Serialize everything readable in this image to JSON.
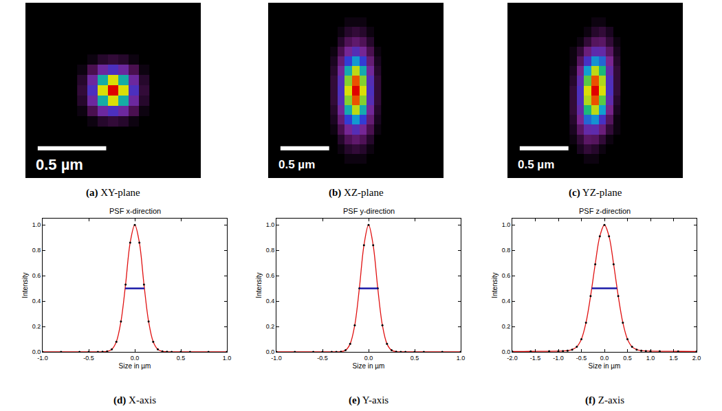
{
  "chart_data": [
    {
      "type": "heatmap",
      "caption": {
        "letter": "(a)",
        "text": "XY-plane"
      },
      "x": [
        -0.225,
        -0.15,
        -0.075,
        0,
        0.075,
        0.15,
        0.225
      ],
      "y": [
        -0.225,
        -0.15,
        -0.075,
        0,
        0.075,
        0.15,
        0.225
      ],
      "z": [
        [
          0,
          0.01,
          0.03,
          0.04,
          0.03,
          0.01,
          0
        ],
        [
          0.01,
          0.06,
          0.18,
          0.25,
          0.18,
          0.06,
          0.01
        ],
        [
          0.03,
          0.18,
          0.5,
          0.71,
          0.5,
          0.18,
          0.03
        ],
        [
          0.04,
          0.25,
          0.71,
          1,
          0.71,
          0.25,
          0.04
        ],
        [
          0.03,
          0.18,
          0.5,
          0.71,
          0.5,
          0.18,
          0.03
        ],
        [
          0.01,
          0.06,
          0.18,
          0.25,
          0.18,
          0.06,
          0.01
        ],
        [
          0,
          0.01,
          0.03,
          0.04,
          0.03,
          0.01,
          0
        ]
      ],
      "zlim": [
        0,
        1
      ],
      "xlim": [
        -0.64,
        0.64
      ],
      "ylim": [
        -0.64,
        0.64
      ],
      "scale_bar": {
        "length": 0.5,
        "label": "0.5 µm"
      },
      "tick_labels": false
    },
    {
      "type": "heatmap",
      "caption": {
        "letter": "(b)",
        "text": "XZ-plane"
      },
      "x": [
        -0.225,
        -0.15,
        -0.075,
        0,
        0.075,
        0.15,
        0.225
      ],
      "y": [
        -0.7,
        -0.6,
        -0.5,
        -0.4,
        -0.3,
        -0.2,
        -0.1,
        0,
        0.1,
        0.2,
        0.3,
        0.4,
        0.5,
        0.6,
        0.7
      ],
      "z": [
        [
          0,
          0,
          0.01,
          0.01,
          0.01,
          0,
          0
        ],
        [
          0,
          0.01,
          0.03,
          0.04,
          0.03,
          0.01,
          0
        ],
        [
          0,
          0.03,
          0.07,
          0.1,
          0.07,
          0.03,
          0
        ],
        [
          0.01,
          0.06,
          0.16,
          0.23,
          0.16,
          0.06,
          0.01
        ],
        [
          0.02,
          0.11,
          0.31,
          0.44,
          0.31,
          0.11,
          0.02
        ],
        [
          0.03,
          0.17,
          0.49,
          0.69,
          0.49,
          0.17,
          0.03
        ],
        [
          0.04,
          0.23,
          0.65,
          0.91,
          0.65,
          0.23,
          0.04
        ],
        [
          0.04,
          0.25,
          0.71,
          1,
          0.71,
          0.25,
          0.04
        ],
        [
          0.04,
          0.23,
          0.65,
          0.91,
          0.65,
          0.23,
          0.04
        ],
        [
          0.03,
          0.17,
          0.49,
          0.69,
          0.49,
          0.17,
          0.03
        ],
        [
          0.02,
          0.11,
          0.31,
          0.44,
          0.31,
          0.11,
          0.02
        ],
        [
          0.01,
          0.06,
          0.16,
          0.23,
          0.16,
          0.06,
          0.01
        ],
        [
          0,
          0.03,
          0.07,
          0.1,
          0.07,
          0.03,
          0
        ],
        [
          0,
          0.01,
          0.03,
          0.04,
          0.03,
          0.01,
          0
        ],
        [
          0,
          0,
          0.01,
          0.01,
          0.01,
          0,
          0
        ]
      ],
      "zlim": [
        0,
        1
      ],
      "xlim": [
        -0.9,
        0.9
      ],
      "ylim": [
        -0.9,
        0.9
      ],
      "scale_bar": {
        "length": 0.5,
        "label": "0.5 µm"
      },
      "tick_labels": false
    },
    {
      "type": "heatmap",
      "caption": {
        "letter": "(c)",
        "text": "YZ-plane"
      },
      "x": [
        -0.225,
        -0.15,
        -0.075,
        0,
        0.075,
        0.15,
        0.225
      ],
      "y": [
        -0.7,
        -0.6,
        -0.5,
        -0.4,
        -0.3,
        -0.2,
        -0.1,
        0,
        0.1,
        0.2,
        0.3,
        0.4,
        0.5,
        0.6,
        0.7
      ],
      "z": [
        [
          0,
          0,
          0.01,
          0.01,
          0,
          0,
          0
        ],
        [
          0,
          0.02,
          0.04,
          0.03,
          0.01,
          0,
          0
        ],
        [
          0.01,
          0.04,
          0.09,
          0.08,
          0.04,
          0.01,
          0
        ],
        [
          0.02,
          0.09,
          0.2,
          0.21,
          0.12,
          0.04,
          0.01
        ],
        [
          0.03,
          0.15,
          0.37,
          0.43,
          0.26,
          0.08,
          0.01
        ],
        [
          0.04,
          0.2,
          0.55,
          0.69,
          0.45,
          0.14,
          0.02
        ],
        [
          0.04,
          0.24,
          0.68,
          0.91,
          0.62,
          0.21,
          0.03
        ],
        [
          0.04,
          0.25,
          0.71,
          1,
          0.71,
          0.25,
          0.04
        ],
        [
          0.03,
          0.21,
          0.62,
          0.91,
          0.68,
          0.24,
          0.04
        ],
        [
          0.02,
          0.14,
          0.45,
          0.69,
          0.55,
          0.2,
          0.04
        ],
        [
          0.01,
          0.08,
          0.26,
          0.43,
          0.37,
          0.15,
          0.03
        ],
        [
          0.01,
          0.04,
          0.12,
          0.21,
          0.2,
          0.09,
          0.02
        ],
        [
          0,
          0.01,
          0.04,
          0.08,
          0.09,
          0.04,
          0.01
        ],
        [
          0,
          0,
          0.01,
          0.03,
          0.04,
          0.02,
          0
        ],
        [
          0,
          0,
          0,
          0.01,
          0.01,
          0,
          0
        ]
      ],
      "zlim": [
        0,
        1
      ],
      "xlim": [
        -0.9,
        0.9
      ],
      "ylim": [
        -0.9,
        0.9
      ],
      "scale_bar": {
        "length": 0.5,
        "label": "0.5 µm"
      },
      "tick_labels": false
    },
    {
      "type": "line",
      "title": "PSF x-direction",
      "x_label": "Size in µm",
      "y_label": "Intensity",
      "caption": {
        "letter": "(d)",
        "text": "X-axis"
      },
      "x": [
        -1,
        -0.8,
        -0.6,
        -0.5,
        -0.4,
        -0.35,
        -0.3,
        -0.25,
        -0.2,
        -0.15,
        -0.1,
        -0.05,
        0,
        0.05,
        0.1,
        0.15,
        0.2,
        0.25,
        0.3,
        0.35,
        0.4,
        0.5,
        0.6,
        0.8,
        1
      ],
      "values": [
        0,
        0,
        0,
        0,
        0,
        0.001,
        0.004,
        0.02,
        0.08,
        0.24,
        0.53,
        0.86,
        1,
        0.86,
        0.53,
        0.24,
        0.08,
        0.02,
        0.004,
        0.001,
        0,
        0,
        0,
        0,
        0
      ],
      "color": "#e01010",
      "marker": "circle",
      "fwhm": {
        "x": [
          -0.105,
          0.105
        ],
        "y": 0.5,
        "color": "#1a1aa8"
      },
      "xlim": [
        -1,
        1
      ],
      "ylim": [
        0,
        1.05
      ],
      "xticks": [
        {
          "value": -1,
          "label": "-1.0"
        },
        -0.5,
        {
          "value": 0,
          "label": "0.0"
        },
        0.5,
        {
          "value": 1,
          "label": "1.0"
        }
      ],
      "yticks": [
        {
          "value": 0,
          "label": "0.0"
        },
        0.2,
        0.4,
        0.6,
        0.8,
        {
          "value": 1,
          "label": "1.0"
        }
      ],
      "grid": false
    },
    {
      "type": "line",
      "title": "PSF y-direction",
      "x_label": "Size in µm",
      "y_label": "Intensity",
      "caption": {
        "letter": "(e)",
        "text": "Y-axis"
      },
      "x": [
        -1,
        -0.8,
        -0.6,
        -0.5,
        -0.4,
        -0.35,
        -0.3,
        -0.25,
        -0.2,
        -0.15,
        -0.1,
        -0.05,
        0,
        0.05,
        0.1,
        0.15,
        0.2,
        0.25,
        0.3,
        0.35,
        0.4,
        0.5,
        0.6,
        0.8,
        1
      ],
      "values": [
        0,
        0,
        0,
        0,
        0,
        0,
        0.002,
        0.013,
        0.063,
        0.21,
        0.5,
        0.84,
        1,
        0.84,
        0.5,
        0.21,
        0.063,
        0.013,
        0.002,
        0,
        0,
        0,
        0,
        0,
        0
      ],
      "color": "#e01010",
      "marker": "circle",
      "fwhm": {
        "x": [
          -0.1,
          0.1
        ],
        "y": 0.5,
        "color": "#1a1aa8"
      },
      "xlim": [
        -1,
        1
      ],
      "ylim": [
        0,
        1.05
      ],
      "xticks": [
        {
          "value": -1,
          "label": "-1.0"
        },
        -0.5,
        {
          "value": 0,
          "label": "0.0"
        },
        0.5,
        {
          "value": 1,
          "label": "1.0"
        }
      ],
      "yticks": [
        {
          "value": 0,
          "label": "0.0"
        },
        0.2,
        0.4,
        0.6,
        0.8,
        {
          "value": 1,
          "label": "1.0"
        }
      ],
      "grid": false
    },
    {
      "type": "line",
      "title": "PSF z-direction",
      "x_label": "Size in µm",
      "y_label": "Intensity",
      "caption": {
        "letter": "(f)",
        "text": "Z-axis"
      },
      "x": [
        -2,
        -1.6,
        -1.2,
        -1,
        -0.9,
        -0.8,
        -0.7,
        -0.6,
        -0.5,
        -0.4,
        -0.3,
        -0.2,
        -0.1,
        0,
        0.1,
        0.2,
        0.3,
        0.4,
        0.5,
        0.6,
        0.7,
        0.8,
        0.9,
        1,
        1.2,
        1.6,
        2
      ],
      "values": [
        0.003,
        0.004,
        0.005,
        0.006,
        0.007,
        0.01,
        0.018,
        0.04,
        0.1,
        0.23,
        0.44,
        0.69,
        0.91,
        1,
        0.91,
        0.69,
        0.44,
        0.23,
        0.1,
        0.04,
        0.018,
        0.01,
        0.007,
        0.006,
        0.005,
        0.004,
        0.003
      ],
      "color": "#e01010",
      "marker": "circle",
      "fwhm": {
        "x": [
          -0.275,
          0.275
        ],
        "y": 0.5,
        "color": "#1a1aa8"
      },
      "xlim": [
        -2,
        2
      ],
      "ylim": [
        0,
        1.05
      ],
      "xticks": [
        {
          "value": -2,
          "label": "-2.0"
        },
        -1.5,
        {
          "value": -1,
          "label": "-1.0"
        },
        -0.5,
        {
          "value": 0,
          "label": "0.0"
        },
        0.5,
        {
          "value": 1,
          "label": "1.0"
        },
        1.5,
        {
          "value": 2,
          "label": "2.0"
        }
      ],
      "yticks": [
        {
          "value": 0,
          "label": "0.0"
        },
        0.2,
        0.4,
        0.6,
        0.8,
        {
          "value": 1,
          "label": "1.0"
        }
      ],
      "grid": false
    }
  ]
}
